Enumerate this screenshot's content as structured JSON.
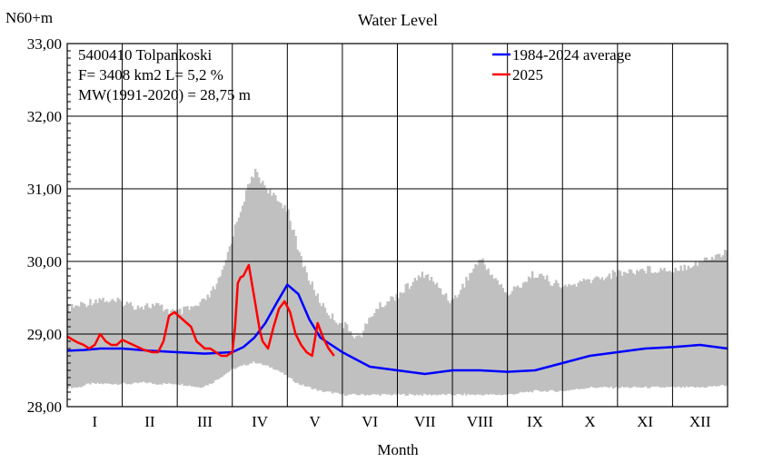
{
  "chart_data": {
    "type": "line",
    "title": "Water Level",
    "ylabel": "N60+m",
    "xlabel": "Month",
    "ylim": [
      28.0,
      33.0
    ],
    "yticks": [
      "28,00",
      "29,00",
      "30,00",
      "31,00",
      "32,00",
      "33,00"
    ],
    "categories": [
      "I",
      "II",
      "III",
      "IV",
      "V",
      "VI",
      "VII",
      "VIII",
      "IX",
      "X",
      "XI",
      "XII"
    ],
    "info": {
      "station": "5400410 Tolpankoski",
      "area": "F=   3408 km2 L=  5,2 %",
      "mw": "MW(1991-2020) = 28,75 m"
    },
    "legend_position": "top-right",
    "grid": true,
    "range_band": {
      "color": "#c0c0c0",
      "x": [
        0,
        0.2,
        0.4,
        0.6,
        0.8,
        1.0,
        1.2,
        1.4,
        1.6,
        1.8,
        2.0,
        2.2,
        2.4,
        2.6,
        2.8,
        3.0,
        3.2,
        3.4,
        3.6,
        3.8,
        4.0,
        4.2,
        4.4,
        4.6,
        4.8,
        5.0,
        5.3,
        5.6,
        6.0,
        6.5,
        7.0,
        7.5,
        8.0,
        8.5,
        9.0,
        9.5,
        10.0,
        10.5,
        11.0,
        11.5,
        12.0
      ],
      "min": [
        28.25,
        28.25,
        28.3,
        28.3,
        28.3,
        28.3,
        28.3,
        28.32,
        28.3,
        28.3,
        28.3,
        28.28,
        28.25,
        28.3,
        28.4,
        28.5,
        28.55,
        28.6,
        28.55,
        28.5,
        28.4,
        28.3,
        28.25,
        28.2,
        28.18,
        28.15,
        28.15,
        28.15,
        28.15,
        28.15,
        28.15,
        28.15,
        28.15,
        28.2,
        28.2,
        28.25,
        28.25,
        28.25,
        28.25,
        28.25,
        28.28
      ],
      "max": [
        29.4,
        29.45,
        29.5,
        29.55,
        29.5,
        29.5,
        29.45,
        29.45,
        29.45,
        29.4,
        29.35,
        29.4,
        29.45,
        29.6,
        29.85,
        30.4,
        30.9,
        31.3,
        31.1,
        30.9,
        30.8,
        30.2,
        29.8,
        29.5,
        29.3,
        29.2,
        29.0,
        29.4,
        29.6,
        29.9,
        29.5,
        30.1,
        29.6,
        29.9,
        29.7,
        29.8,
        29.9,
        29.95,
        29.95,
        30.05,
        30.2
      ]
    },
    "series": [
      {
        "name": "1984-2024 average",
        "color": "#0000ff",
        "x": [
          0,
          0.3,
          0.6,
          1.0,
          1.5,
          2.0,
          2.5,
          3.0,
          3.2,
          3.4,
          3.6,
          3.8,
          4.0,
          4.2,
          4.4,
          4.6,
          4.8,
          5.0,
          5.5,
          6.0,
          6.5,
          7.0,
          7.5,
          8.0,
          8.5,
          9.0,
          9.5,
          10.0,
          10.5,
          11.0,
          11.5,
          12.0
        ],
        "y": [
          28.77,
          28.78,
          28.8,
          28.8,
          28.77,
          28.75,
          28.73,
          28.75,
          28.82,
          28.95,
          29.15,
          29.42,
          29.68,
          29.55,
          29.2,
          28.95,
          28.85,
          28.75,
          28.55,
          28.5,
          28.45,
          28.5,
          28.5,
          28.48,
          28.5,
          28.6,
          28.7,
          28.75,
          28.8,
          28.82,
          28.85,
          28.8
        ]
      },
      {
        "name": "2025",
        "color": "#ff0000",
        "x": [
          0,
          0.1,
          0.2,
          0.3,
          0.4,
          0.5,
          0.6,
          0.7,
          0.8,
          0.9,
          1.0,
          1.2,
          1.4,
          1.55,
          1.65,
          1.75,
          1.85,
          1.95,
          2.1,
          2.25,
          2.35,
          2.5,
          2.6,
          2.8,
          2.9,
          3.0,
          3.05,
          3.1,
          3.15,
          3.2,
          3.3,
          3.4,
          3.5,
          3.55,
          3.65,
          3.75,
          3.85,
          3.95,
          4.05,
          4.15,
          4.25,
          4.35,
          4.45,
          4.55,
          4.65,
          4.75,
          4.85
        ],
        "y": [
          28.97,
          28.92,
          28.88,
          28.85,
          28.8,
          28.85,
          29.0,
          28.9,
          28.85,
          28.85,
          28.92,
          28.85,
          28.78,
          28.75,
          28.75,
          28.9,
          29.25,
          29.3,
          29.2,
          29.1,
          28.9,
          28.8,
          28.8,
          28.7,
          28.7,
          28.75,
          29.1,
          29.7,
          29.78,
          29.8,
          29.95,
          29.5,
          29.05,
          28.9,
          28.8,
          29.1,
          29.35,
          29.45,
          29.3,
          29.0,
          28.85,
          28.75,
          28.7,
          29.15,
          28.95,
          28.8,
          28.7
        ]
      }
    ]
  }
}
